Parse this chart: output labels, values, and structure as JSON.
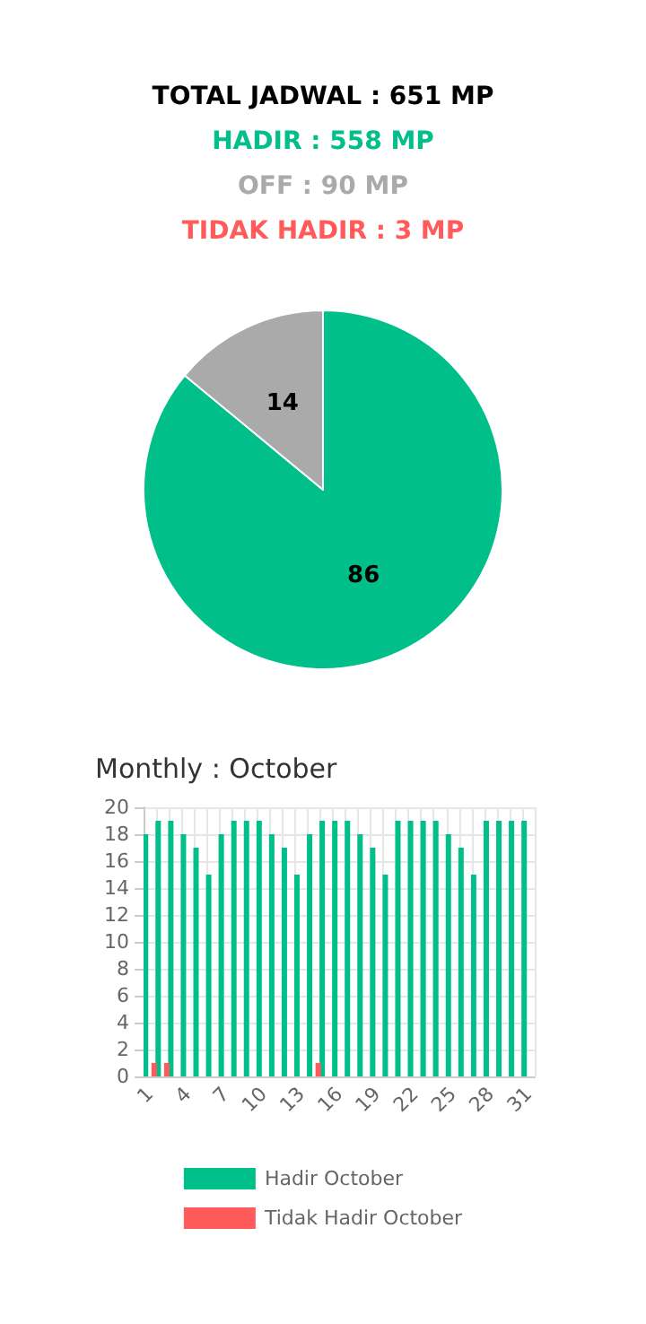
{
  "chart_data": [
    {
      "type": "pie",
      "title": "TOTAL JADWAL : 651 MP",
      "annotations": [
        "HADIR : 558 MP",
        "OFF : 90 MP",
        "TIDAK HADIR : 3 MP"
      ],
      "categories": [
        null,
        null
      ],
      "values": [
        86,
        14
      ],
      "colors": [
        "#00bf8a",
        "#aaaaaa"
      ],
      "data_labels": true,
      "legend": false
    },
    {
      "type": "bar",
      "title": "Monthly : October",
      "categories": [
        "1",
        null,
        null,
        "4",
        null,
        null,
        "7",
        null,
        null,
        "10",
        null,
        null,
        "13",
        null,
        null,
        "16",
        null,
        null,
        "19",
        null,
        null,
        "22",
        null,
        null,
        "25",
        null,
        null,
        "28",
        null,
        null,
        "31"
      ],
      "series": [
        {
          "name": "Hadir October",
          "color": "#00bf8a",
          "values": [
            18,
            19,
            19,
            18,
            17,
            15,
            18,
            19,
            19,
            19,
            18,
            17,
            15,
            18,
            19,
            19,
            19,
            18,
            17,
            15,
            19,
            19,
            19,
            19,
            18,
            17,
            15,
            19,
            19,
            19,
            19
          ]
        },
        {
          "name": "Tidak Hadir October",
          "color": "#ff5b5b",
          "values": [
            1,
            1,
            0,
            0,
            0,
            0,
            0,
            0,
            0,
            0,
            0,
            0,
            0,
            1,
            0,
            0,
            0,
            0,
            0,
            0,
            0,
            0,
            0,
            0,
            0,
            0,
            0,
            0,
            0,
            0,
            0
          ]
        }
      ],
      "ylim": [
        0,
        20
      ],
      "yticks": [
        0,
        2,
        4,
        6,
        8,
        10,
        12,
        14,
        16,
        18,
        20
      ],
      "grid": true,
      "legend": "bottom"
    }
  ]
}
